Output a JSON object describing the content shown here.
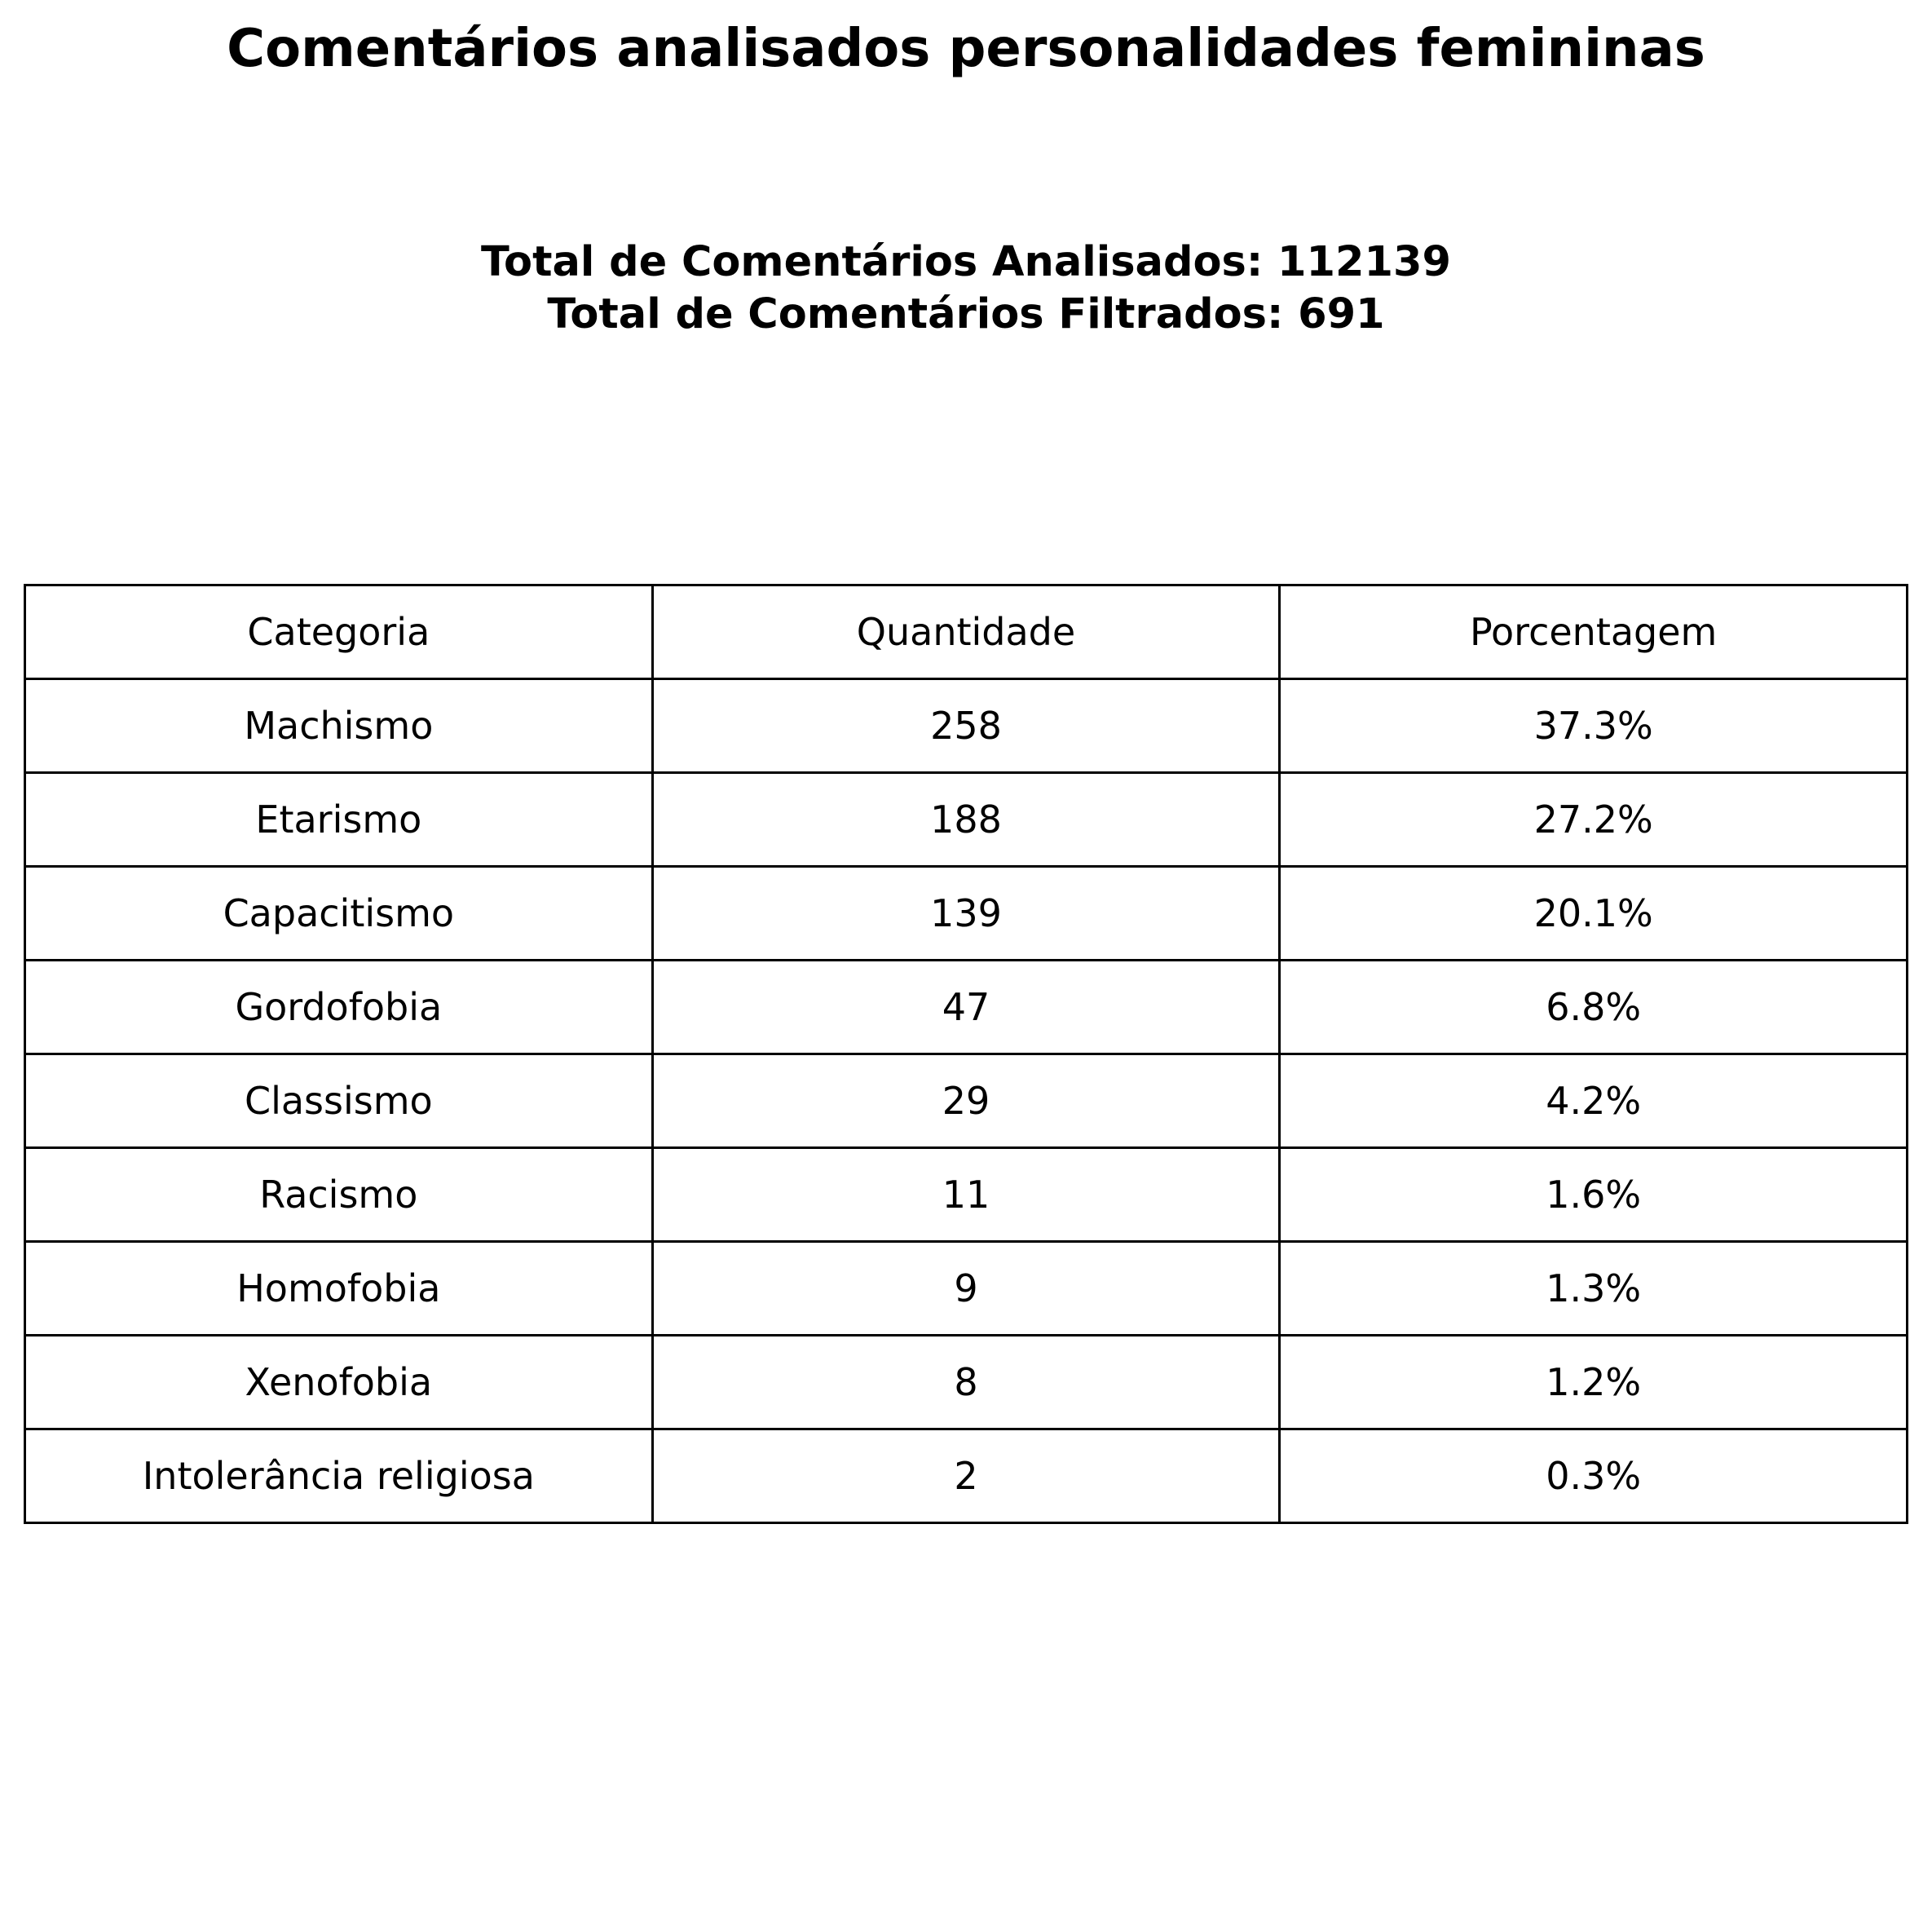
{
  "chart_data": {
    "type": "table",
    "title": "Comentários analisados personalidades femininas",
    "summary": [
      "Total de Comentários Analisados: 112139",
      "Total de Comentários Filtrados: 691"
    ],
    "columns": [
      "Categoria",
      "Quantidade",
      "Porcentagem"
    ],
    "rows": [
      [
        "Machismo",
        "258",
        "37.3%"
      ],
      [
        "Etarismo",
        "188",
        "27.2%"
      ],
      [
        "Capacitismo",
        "139",
        "20.1%"
      ],
      [
        "Gordofobia",
        "47",
        "6.8%"
      ],
      [
        "Classismo",
        "29",
        "4.2%"
      ],
      [
        "Racismo",
        "11",
        "1.6%"
      ],
      [
        "Homofobia",
        "9",
        "1.3%"
      ],
      [
        "Xenofobia",
        "8",
        "1.2%"
      ],
      [
        "Intolerância religiosa",
        "2",
        "0.3%"
      ]
    ]
  }
}
